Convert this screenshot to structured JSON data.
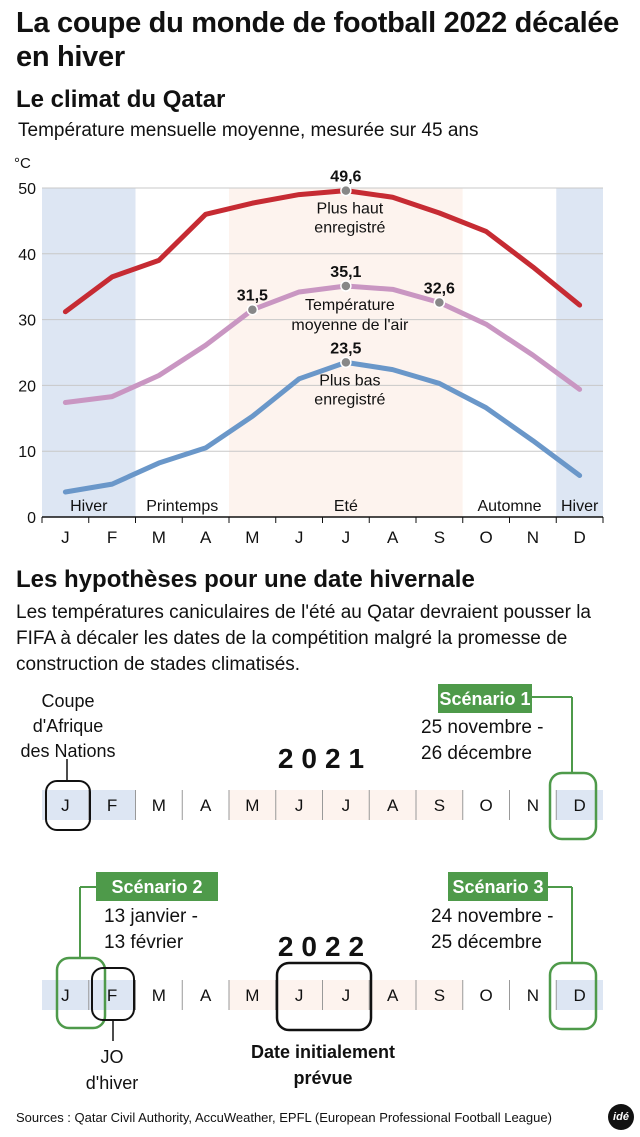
{
  "title": "La coupe du monde de football 2022 décalée en hiver",
  "subtitle": "Le climat du Qatar",
  "description": "Température mensuelle moyenne, mesurée sur 45 ans",
  "unit": "°C",
  "chart_data": {
    "type": "line",
    "title": "Le climat du Qatar",
    "ylabel": "°C",
    "ylim": [
      0,
      50
    ],
    "yticks": [
      0,
      10,
      20,
      30,
      40,
      50
    ],
    "categories": [
      "J",
      "F",
      "M",
      "A",
      "M",
      "J",
      "J",
      "A",
      "S",
      "O",
      "N",
      "D"
    ],
    "grid": true,
    "series": [
      {
        "name": "Plus haut enregistré",
        "label_lines": [
          "Plus haut",
          "enregistré"
        ],
        "color": "#c62b33",
        "values": [
          31.2,
          36.5,
          39.0,
          46.0,
          47.7,
          49.0,
          49.6,
          48.6,
          46.2,
          43.4,
          38.0,
          32.2
        ]
      },
      {
        "name": "Température moyenne de l'air",
        "label_lines": [
          "Température",
          "moyenne de l'air"
        ],
        "color": "#c996c2",
        "values": [
          17.4,
          18.3,
          21.5,
          26.1,
          31.5,
          34.2,
          35.1,
          34.6,
          32.6,
          29.3,
          24.6,
          19.4
        ]
      },
      {
        "name": "Plus bas enregistré",
        "label_lines": [
          "Plus bas",
          "enregistré"
        ],
        "color": "#6a97c9",
        "values": [
          3.8,
          5.0,
          8.2,
          10.5,
          15.3,
          21.0,
          23.5,
          22.4,
          20.3,
          16.6,
          11.6,
          6.3
        ]
      }
    ],
    "annotations": [
      {
        "series": 0,
        "index": 6,
        "text": "49,6"
      },
      {
        "series": 1,
        "index": 4,
        "text": "31,5"
      },
      {
        "series": 1,
        "index": 6,
        "text": "35,1"
      },
      {
        "series": 1,
        "index": 8,
        "text": "32,6"
      },
      {
        "series": 2,
        "index": 6,
        "text": "23,5"
      }
    ],
    "seasons": [
      {
        "label": "Hiver",
        "start": 0,
        "end": 1,
        "color": "#dde6f3"
      },
      {
        "label": "Printemps",
        "start": 2,
        "end": 3,
        "color": "#ffffff"
      },
      {
        "label": "Eté",
        "start": 4,
        "end": 8,
        "color": "#fdf3ee"
      },
      {
        "label": "Automne",
        "start": 9,
        "end": 10,
        "color": "#ffffff"
      },
      {
        "label": "Hiver",
        "start": 11,
        "end": 11,
        "color": "#dde6f3"
      }
    ]
  },
  "hypotheses": {
    "title": "Les hypothèses pour une date hivernale",
    "paragraph": "Les températures caniculaires de l'été au Qatar devraient pousser la FIFA à décaler les dates de la compétition malgré la promesse de construction de stades climatisés.",
    "months": [
      "J",
      "F",
      "M",
      "A",
      "M",
      "J",
      "J",
      "A",
      "S",
      "O",
      "N",
      "D"
    ],
    "year1": "2021",
    "year2": "2022",
    "caf": [
      "Coupe",
      "d'Afrique",
      "des Nations"
    ],
    "jo": [
      "JO",
      "d'hiver"
    ],
    "initial": [
      "Date initialement",
      "prévue"
    ],
    "scenarios": [
      {
        "label": "Scénario 1",
        "dates": [
          "25 novembre -",
          "26 décembre"
        ]
      },
      {
        "label": "Scénario 2",
        "dates": [
          "13 janvier -",
          "13 février"
        ]
      },
      {
        "label": "Scénario 3",
        "dates": [
          "24 novembre -",
          "25 décembre"
        ]
      }
    ],
    "scenario_color": "#4e9a4a"
  },
  "sources": "Sources : Qatar Civil Authority, AccuWeather, EPFL (European Professional Football League)",
  "logo": "idé"
}
